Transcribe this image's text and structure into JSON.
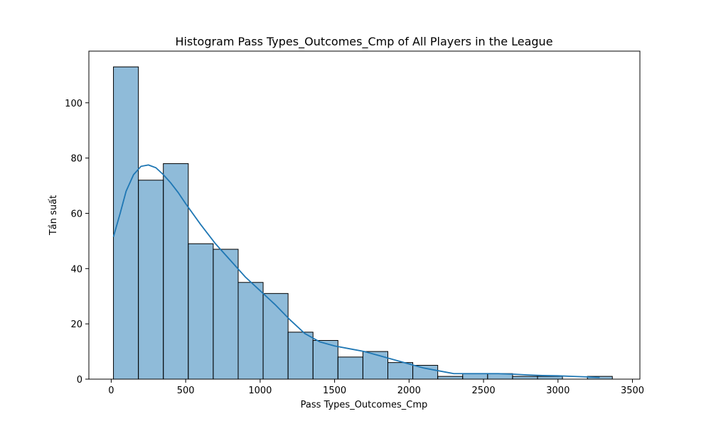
{
  "chart_data": {
    "type": "bar",
    "subtype": "histogram",
    "title": "Histogram Pass Types_Outcomes_Cmp of All Players in the League",
    "xlabel": "Pass Types_Outcomes_Cmp",
    "ylabel": "Tần suất",
    "xlim": [
      -150,
      3550
    ],
    "ylim": [
      0,
      118.7
    ],
    "xticks": [
      0,
      500,
      1000,
      1500,
      2000,
      2500,
      3000,
      3500
    ],
    "yticks": [
      0,
      20,
      40,
      60,
      80,
      100
    ],
    "bar_color": "#1f77b4",
    "bar_alpha": 0.5,
    "bin_edges": [
      15,
      182.5,
      350,
      517.5,
      685,
      852.5,
      1020,
      1187.5,
      1355,
      1522.5,
      1690,
      1857.5,
      2025,
      2192.5,
      2360,
      2527.5,
      2695,
      2862.5,
      3030,
      3197.5,
      3365
    ],
    "counts": [
      113,
      72,
      78,
      49,
      47,
      35,
      31,
      17,
      14,
      8,
      10,
      6,
      5,
      1,
      2,
      2,
      1,
      1,
      0,
      1
    ],
    "kde": {
      "color": "#1f77b4",
      "x": [
        15,
        60,
        100,
        150,
        200,
        250,
        300,
        350,
        400,
        450,
        500,
        600,
        700,
        800,
        900,
        1000,
        1100,
        1200,
        1300,
        1400,
        1500,
        1600,
        1700,
        1800,
        1900,
        2000,
        2100,
        2200,
        2300,
        2400,
        2500,
        2600,
        2700,
        2800,
        2900,
        3000,
        3100,
        3200,
        3280
      ],
      "y": [
        51.5,
        60,
        68,
        74,
        77,
        77.5,
        76.5,
        74,
        71,
        67.5,
        63.5,
        56,
        49,
        43,
        37,
        32,
        27,
        21.5,
        16.5,
        13.5,
        12,
        11,
        10,
        8.5,
        7,
        5.5,
        4,
        3,
        2,
        2,
        2,
        2,
        1.8,
        1.5,
        1.3,
        1.2,
        1,
        0.8,
        0.6
      ]
    }
  }
}
